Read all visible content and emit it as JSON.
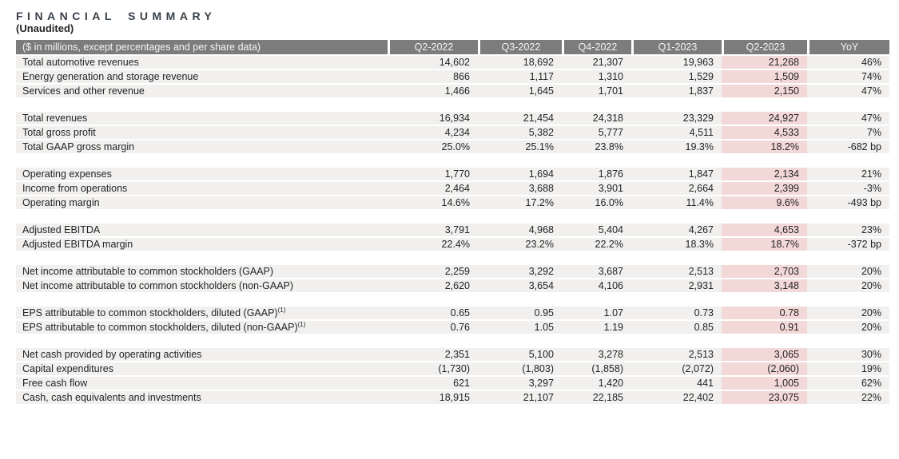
{
  "page": {
    "title": "FINANCIAL SUMMARY",
    "subtitle": "(Unaudited)"
  },
  "table": {
    "corner_label": "($ in millions, except percentages and per share data)",
    "columns": [
      "Q2-2022",
      "Q3-2022",
      "Q4-2022",
      "Q1-2023",
      "Q2-2023",
      "YoY"
    ],
    "highlight_column": "Q2-2023",
    "colors": {
      "header_bg": "#7d7c7c",
      "header_text": "#f5f4f2",
      "row_bg": "#f1f0ef",
      "highlight_bg": "#f2d8d7",
      "text": "#242424",
      "title": "#3a414c"
    },
    "groups": [
      {
        "rows": [
          {
            "label": "Total automotive revenues",
            "values": [
              "14,602",
              "18,692",
              "21,307",
              "19,963",
              "21,268",
              "46%"
            ]
          },
          {
            "label": "Energy generation and storage revenue",
            "values": [
              "866",
              "1,117",
              "1,310",
              "1,529",
              "1,509",
              "74%"
            ]
          },
          {
            "label": "Services and other revenue",
            "values": [
              "1,466",
              "1,645",
              "1,701",
              "1,837",
              "2,150",
              "47%"
            ]
          }
        ]
      },
      {
        "rows": [
          {
            "label": "Total revenues",
            "values": [
              "16,934",
              "21,454",
              "24,318",
              "23,329",
              "24,927",
              "47%"
            ]
          },
          {
            "label": "Total gross profit",
            "values": [
              "4,234",
              "5,382",
              "5,777",
              "4,511",
              "4,533",
              "7%"
            ]
          },
          {
            "label": "Total GAAP gross margin",
            "values": [
              "25.0%",
              "25.1%",
              "23.8%",
              "19.3%",
              "18.2%",
              "-682 bp"
            ]
          }
        ]
      },
      {
        "rows": [
          {
            "label": "Operating expenses",
            "values": [
              "1,770",
              "1,694",
              "1,876",
              "1,847",
              "2,134",
              "21%"
            ]
          },
          {
            "label": "Income from operations",
            "values": [
              "2,464",
              "3,688",
              "3,901",
              "2,664",
              "2,399",
              "-3%"
            ]
          },
          {
            "label": "Operating margin",
            "values": [
              "14.6%",
              "17.2%",
              "16.0%",
              "11.4%",
              "9.6%",
              "-493 bp"
            ]
          }
        ]
      },
      {
        "rows": [
          {
            "label": "Adjusted EBITDA",
            "values": [
              "3,791",
              "4,968",
              "5,404",
              "4,267",
              "4,653",
              "23%"
            ]
          },
          {
            "label": "Adjusted EBITDA margin",
            "values": [
              "22.4%",
              "23.2%",
              "22.2%",
              "18.3%",
              "18.7%",
              "-372 bp"
            ]
          }
        ]
      },
      {
        "rows": [
          {
            "label": "Net income attributable to common stockholders (GAAP)",
            "values": [
              "2,259",
              "3,292",
              "3,687",
              "2,513",
              "2,703",
              "20%"
            ]
          },
          {
            "label": "Net income attributable to common stockholders (non-GAAP)",
            "values": [
              "2,620",
              "3,654",
              "4,106",
              "2,931",
              "3,148",
              "20%"
            ]
          }
        ]
      },
      {
        "rows": [
          {
            "label": "EPS attributable to common stockholders, diluted (GAAP)",
            "sup": "(1)",
            "values": [
              "0.65",
              "0.95",
              "1.07",
              "0.73",
              "0.78",
              "20%"
            ]
          },
          {
            "label": "EPS attributable to common stockholders, diluted (non-GAAP)",
            "sup": "(1)",
            "values": [
              "0.76",
              "1.05",
              "1.19",
              "0.85",
              "0.91",
              "20%"
            ]
          }
        ]
      },
      {
        "rows": [
          {
            "label": "Net cash provided by operating activities",
            "values": [
              "2,351",
              "5,100",
              "3,278",
              "2,513",
              "3,065",
              "30%"
            ]
          },
          {
            "label": "Capital expenditures",
            "values": [
              "(1,730)",
              "(1,803)",
              "(1,858)",
              "(2,072)",
              "(2,060)",
              "19%"
            ]
          },
          {
            "label": "Free cash flow",
            "values": [
              "621",
              "3,297",
              "1,420",
              "441",
              "1,005",
              "62%"
            ]
          },
          {
            "label": "Cash, cash equivalents and investments",
            "values": [
              "18,915",
              "21,107",
              "22,185",
              "22,402",
              "23,075",
              "22%"
            ]
          }
        ]
      }
    ]
  }
}
